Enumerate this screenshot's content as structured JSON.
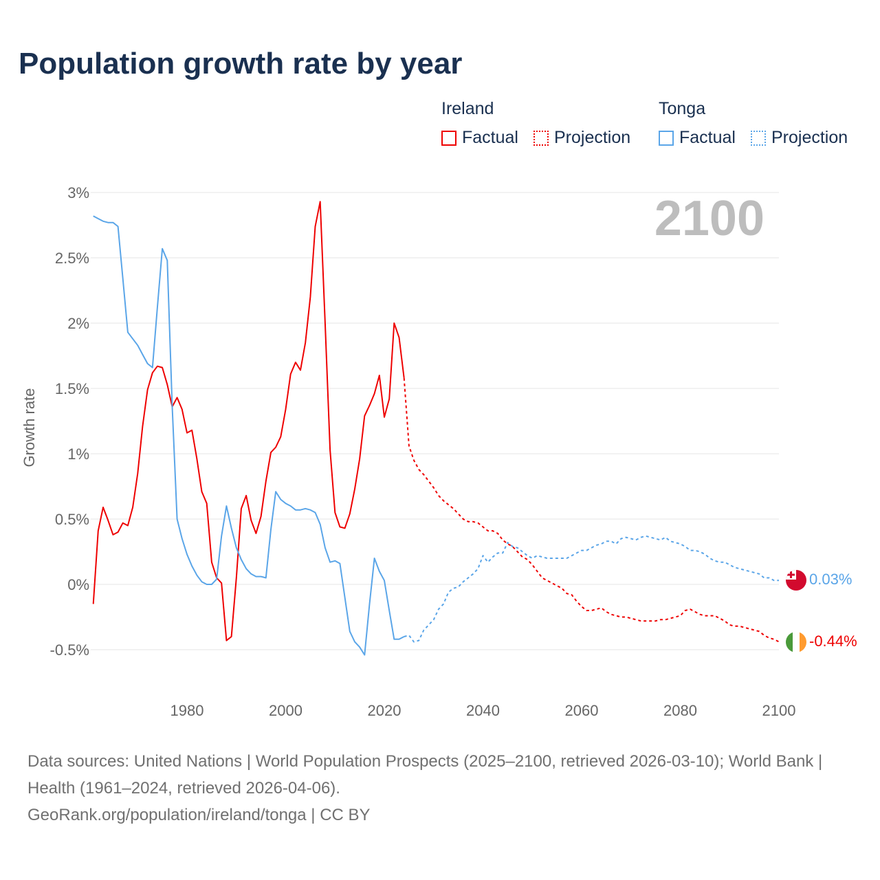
{
  "title": "Population growth rate by year",
  "legend": {
    "groups": [
      {
        "name": "Ireland",
        "factual": "Factual",
        "projection": "Projection",
        "color": "#ee0000"
      },
      {
        "name": "Tonga",
        "factual": "Factual",
        "projection": "Projection",
        "color": "#5aa5e8"
      }
    ]
  },
  "year_label": "2100",
  "end_labels": {
    "tonga": "0.03%",
    "ireland": "-0.44%"
  },
  "footer": {
    "sources": "Data sources: United Nations | World Population Prospects (2025–2100, retrieved 2026-03-10); World Bank | Health (1961–2024, retrieved 2026-04-06).",
    "credit": "GeoRank.org/population/ireland/tonga | CC BY"
  },
  "chart_data": {
    "type": "line",
    "title": "Population growth rate by year",
    "xlabel": "",
    "ylabel": "Growth rate",
    "xlim": [
      1961,
      2100
    ],
    "ylim": [
      -0.7,
      3.1
    ],
    "x_ticks": [
      1980,
      2000,
      2020,
      2040,
      2060,
      2080,
      2100
    ],
    "y_ticks": [
      -0.5,
      0,
      0.5,
      1,
      1.5,
      2,
      2.5,
      3
    ],
    "y_tick_labels": [
      "-0.5%",
      "0%",
      "0.5%",
      "1%",
      "1.5%",
      "2%",
      "2.5%",
      "3%"
    ],
    "grid": true,
    "legend_position": "top-right",
    "series": [
      {
        "name": "Ireland Factual",
        "start_year": 1961,
        "color": "#ee0000",
        "dashed": false,
        "values": [
          -0.15,
          0.41,
          0.59,
          0.49,
          0.38,
          0.4,
          0.47,
          0.45,
          0.59,
          0.85,
          1.21,
          1.49,
          1.62,
          1.67,
          1.66,
          1.53,
          1.36,
          1.43,
          1.34,
          1.16,
          1.18,
          0.96,
          0.71,
          0.62,
          0.17,
          0.05,
          0.01,
          -0.43,
          -0.4,
          0.05,
          0.58,
          0.68,
          0.49,
          0.39,
          0.52,
          0.79,
          1.01,
          1.05,
          1.13,
          1.34,
          1.61,
          1.7,
          1.64,
          1.85,
          2.2,
          2.74,
          2.93,
          2.0,
          1.03,
          0.55,
          0.44,
          0.43,
          0.54,
          0.73,
          0.96,
          1.29,
          1.37,
          1.46,
          1.6,
          1.28,
          1.42,
          2.0,
          1.89,
          1.58
        ]
      },
      {
        "name": "Ireland Projection",
        "start_year": 2024,
        "color": "#ee0000",
        "dashed": true,
        "values": [
          1.58,
          1.06,
          0.95,
          0.88,
          0.84,
          0.79,
          0.74,
          0.68,
          0.64,
          0.61,
          0.58,
          0.54,
          0.5,
          0.48,
          0.48,
          0.47,
          0.44,
          0.41,
          0.41,
          0.39,
          0.34,
          0.31,
          0.29,
          0.25,
          0.21,
          0.19,
          0.15,
          0.1,
          0.05,
          0.03,
          0.01,
          -0.01,
          -0.03,
          -0.07,
          -0.08,
          -0.13,
          -0.17,
          -0.2,
          -0.2,
          -0.19,
          -0.18,
          -0.21,
          -0.23,
          -0.24,
          -0.25,
          -0.25,
          -0.26,
          -0.27,
          -0.28,
          -0.28,
          -0.28,
          -0.28,
          -0.27,
          -0.27,
          -0.26,
          -0.25,
          -0.24,
          -0.2,
          -0.19,
          -0.21,
          -0.23,
          -0.24,
          -0.24,
          -0.24,
          -0.26,
          -0.28,
          -0.31,
          -0.32,
          -0.32,
          -0.33,
          -0.34,
          -0.35,
          -0.36,
          -0.39,
          -0.41,
          -0.42,
          -0.44
        ]
      },
      {
        "name": "Tonga Factual",
        "start_year": 1961,
        "color": "#5aa5e8",
        "dashed": false,
        "values": [
          2.82,
          2.8,
          2.78,
          2.77,
          2.77,
          2.74,
          2.34,
          1.93,
          1.88,
          1.83,
          1.76,
          1.69,
          1.66,
          2.12,
          2.57,
          2.48,
          1.36,
          0.5,
          0.35,
          0.23,
          0.14,
          0.07,
          0.02,
          0.0,
          0.0,
          0.04,
          0.37,
          0.6,
          0.43,
          0.28,
          0.19,
          0.12,
          0.08,
          0.06,
          0.06,
          0.05,
          0.42,
          0.71,
          0.65,
          0.62,
          0.6,
          0.57,
          0.57,
          0.58,
          0.57,
          0.55,
          0.46,
          0.28,
          0.17,
          0.18,
          0.16,
          -0.1,
          -0.36,
          -0.44,
          -0.48,
          -0.54,
          -0.15,
          0.2,
          0.1,
          0.03,
          -0.2,
          -0.42,
          -0.42,
          -0.4
        ]
      },
      {
        "name": "Tonga Projection",
        "start_year": 2024,
        "color": "#5aa5e8",
        "dashed": true,
        "values": [
          -0.4,
          -0.39,
          -0.44,
          -0.43,
          -0.35,
          -0.31,
          -0.27,
          -0.19,
          -0.15,
          -0.06,
          -0.03,
          -0.02,
          0.02,
          0.05,
          0.08,
          0.12,
          0.22,
          0.17,
          0.21,
          0.24,
          0.24,
          0.32,
          0.29,
          0.28,
          0.25,
          0.22,
          0.2,
          0.22,
          0.21,
          0.2,
          0.2,
          0.2,
          0.2,
          0.2,
          0.22,
          0.24,
          0.26,
          0.26,
          0.28,
          0.3,
          0.31,
          0.33,
          0.33,
          0.31,
          0.35,
          0.36,
          0.35,
          0.34,
          0.36,
          0.37,
          0.36,
          0.35,
          0.34,
          0.36,
          0.33,
          0.32,
          0.31,
          0.29,
          0.26,
          0.26,
          0.25,
          0.23,
          0.2,
          0.18,
          0.17,
          0.17,
          0.15,
          0.13,
          0.12,
          0.11,
          0.1,
          0.09,
          0.08,
          0.05,
          0.05,
          0.03,
          0.03
        ]
      }
    ]
  }
}
